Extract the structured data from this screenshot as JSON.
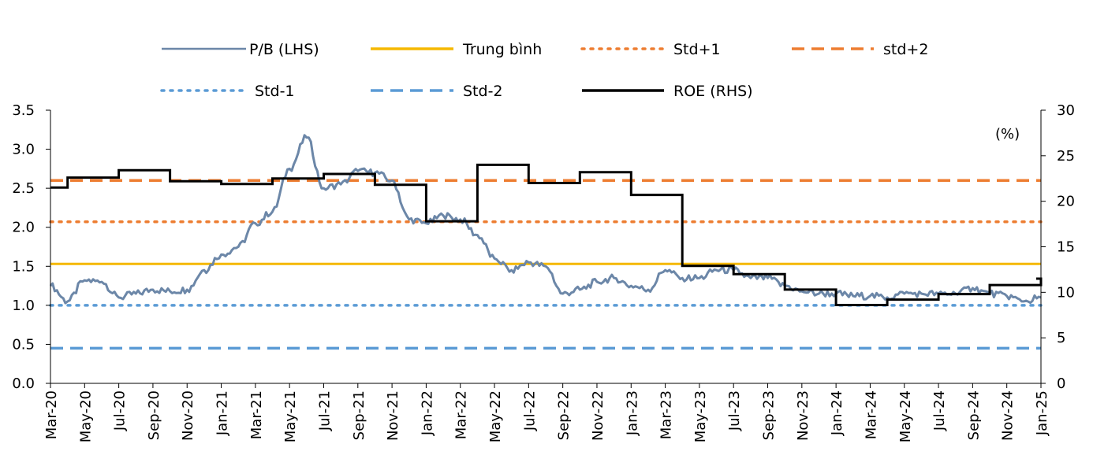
{
  "chart_data": {
    "type": "line",
    "title": "",
    "xlabel": "",
    "ylabel_left": "",
    "ylabel_right": "(%)",
    "x_tick_labels": [
      "Mar-20",
      "May-20",
      "Jul-20",
      "Sep-20",
      "Nov-20",
      "Jan-21",
      "Mar-21",
      "May-21",
      "Jul-21",
      "Sep-21",
      "Nov-21",
      "Jan-22",
      "Mar-22",
      "May-22",
      "Jul-22",
      "Sep-22",
      "Nov-22",
      "Jan-23",
      "Mar-23",
      "May-23",
      "Jul-23",
      "Sep-23",
      "Nov-23",
      "Jan-24",
      "Mar-24",
      "May-24",
      "Jul-24",
      "Sep-24",
      "Nov-24",
      "Jan-25"
    ],
    "y_left": {
      "range": [
        0,
        3.5
      ],
      "ticks": [
        "0.0",
        "0.5",
        "1.0",
        "1.5",
        "2.0",
        "2.5",
        "3.0",
        "3.5"
      ]
    },
    "y_right": {
      "range": [
        0,
        30
      ],
      "ticks": [
        "0",
        "5",
        "10",
        "15",
        "20",
        "25",
        "30"
      ]
    },
    "grid": false,
    "legend_placement": "top",
    "series": [
      {
        "name": "P/B (LHS)",
        "axis": "left",
        "color": "#6c87a8",
        "style": "solid",
        "x": [
          "Mar-20",
          "Apr-20",
          "May-20",
          "Jun-20",
          "Jul-20",
          "Aug-20",
          "Sep-20",
          "Oct-20",
          "Nov-20",
          "Dec-20",
          "Jan-21",
          "Feb-21",
          "Mar-21",
          "Apr-21",
          "May-21",
          "Jun-21",
          "Jul-21",
          "Aug-21",
          "Sep-21",
          "Oct-21",
          "Nov-21",
          "Dec-21",
          "Jan-22",
          "Feb-22",
          "Mar-22",
          "Apr-22",
          "May-22",
          "Jun-22",
          "Jul-22",
          "Aug-22",
          "Sep-22",
          "Oct-22",
          "Nov-22",
          "Dec-22",
          "Jan-23",
          "Feb-23",
          "Mar-23",
          "Apr-23",
          "May-23",
          "Jun-23",
          "Jul-23",
          "Aug-23",
          "Sep-23",
          "Oct-23",
          "Nov-23",
          "Dec-23",
          "Jan-24",
          "Feb-24",
          "Mar-24",
          "Apr-24",
          "May-24",
          "Jun-24",
          "Jul-24",
          "Aug-24",
          "Sep-24",
          "Oct-24",
          "Nov-24",
          "Dec-24",
          "Jan-25"
        ],
        "values": [
          1.25,
          1.05,
          1.32,
          1.3,
          1.1,
          1.15,
          1.2,
          1.18,
          1.2,
          1.45,
          1.65,
          1.75,
          2.05,
          2.2,
          2.75,
          3.15,
          2.5,
          2.55,
          2.72,
          2.7,
          2.6,
          2.1,
          2.05,
          2.15,
          2.1,
          1.9,
          1.6,
          1.45,
          1.55,
          1.5,
          1.15,
          1.2,
          1.3,
          1.35,
          1.25,
          1.2,
          1.45,
          1.35,
          1.35,
          1.45,
          1.45,
          1.35,
          1.35,
          1.25,
          1.18,
          1.15,
          1.15,
          1.12,
          1.12,
          1.1,
          1.15,
          1.15,
          1.15,
          1.15,
          1.22,
          1.15,
          1.12,
          1.05,
          1.1
        ]
      },
      {
        "name": "Trung bình",
        "axis": "left",
        "color": "#f5b800",
        "style": "solid",
        "value": 1.53
      },
      {
        "name": "Std+1",
        "axis": "left",
        "color": "#ed7d31",
        "style": "dotted",
        "value": 2.07
      },
      {
        "name": "std+2",
        "axis": "left",
        "color": "#ed7d31",
        "style": "dashed",
        "value": 2.6
      },
      {
        "name": "Std-1",
        "axis": "left",
        "color": "#5b9bd5",
        "style": "dotted",
        "value": 1.0
      },
      {
        "name": "Std-2",
        "axis": "left",
        "color": "#5b9bd5",
        "style": "dashed",
        "value": 0.45
      },
      {
        "name": "ROE (RHS)",
        "axis": "right",
        "color": "#000000",
        "style": "step",
        "x": [
          "Mar-20",
          "Apr-20",
          "Jul-20",
          "Oct-20",
          "Jan-21",
          "Apr-21",
          "Jul-21",
          "Oct-21",
          "Jan-22",
          "Apr-22",
          "Jul-22",
          "Oct-22",
          "Jan-23",
          "Apr-23",
          "Jul-23",
          "Oct-23",
          "Jan-24",
          "Apr-24",
          "Jul-24",
          "Oct-24",
          "Jan-25"
        ],
        "values": [
          21.5,
          22.6,
          23.4,
          22.2,
          21.9,
          22.5,
          23.0,
          21.8,
          17.8,
          24.0,
          22.0,
          23.2,
          20.7,
          12.9,
          12.0,
          10.3,
          8.6,
          9.2,
          9.8,
          10.8,
          11.5
        ]
      }
    ]
  }
}
